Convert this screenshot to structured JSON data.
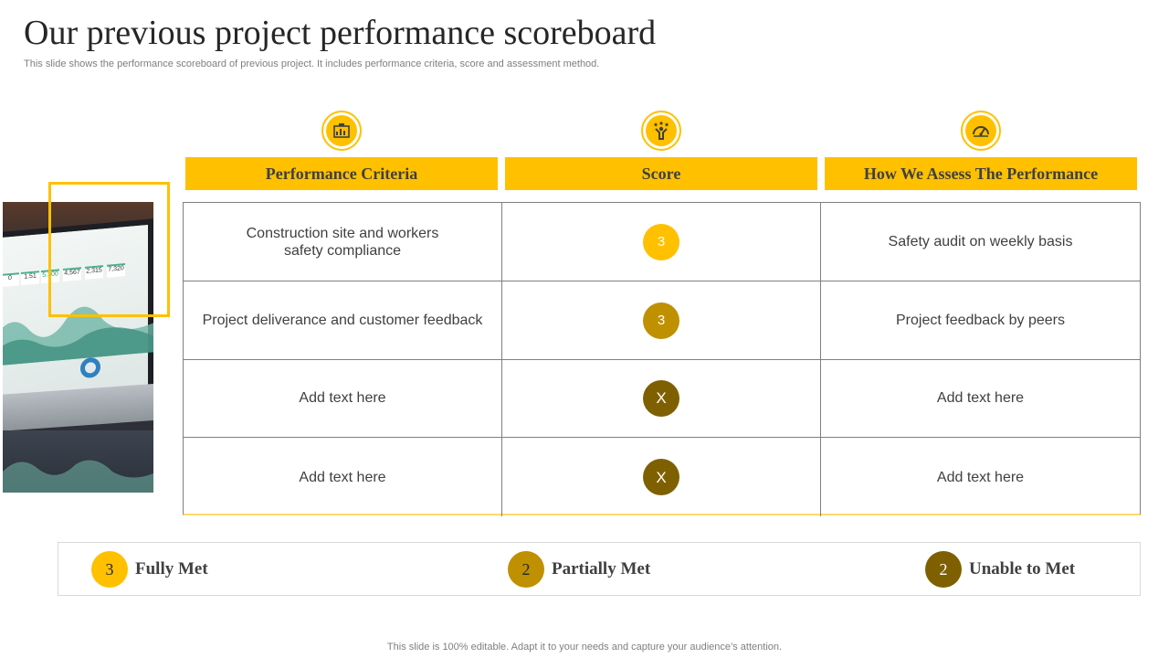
{
  "slide": {
    "title": "Our previous project performance scoreboard",
    "subtitle": "This slide shows the performance scoreboard of previous project. It includes performance criteria, score and assessment method.",
    "footer": "This slide is 100% editable. Adapt it to your needs and capture your audience’s attention."
  },
  "image": {
    "kpi_values": [
      "0",
      "1.51",
      "5.300",
      "4,567",
      "2,315",
      "7,320"
    ]
  },
  "icons": [
    "dashboard-icon",
    "star-person-icon",
    "speedometer-icon"
  ],
  "table": {
    "headers": [
      "Performance Criteria",
      "Score",
      "How We Assess The Performance"
    ],
    "rows": [
      {
        "criteria_line1": "Construction site and workers",
        "criteria_line2": "safety compliance",
        "score": "3",
        "assessment": "Safety audit on weekly basis"
      },
      {
        "criteria_line1": "Project deliverance and customer feedback",
        "criteria_line2": "",
        "score": "3",
        "assessment": "Project feedback by peers"
      },
      {
        "criteria_line1": "Add text here",
        "criteria_line2": "",
        "score": "X",
        "assessment": "Add text here"
      },
      {
        "criteria_line1": "Add text here",
        "criteria_line2": "",
        "score": "X",
        "assessment": "Add text here"
      }
    ]
  },
  "legend": [
    {
      "value": "3",
      "label": "Fully Met",
      "color": "#ffc000"
    },
    {
      "value": "2",
      "label": "Partially Met",
      "color": "#bf9000"
    },
    {
      "value": "2",
      "label": "Unable to Met",
      "color": "#7f6000"
    }
  ],
  "colors": {
    "accent": "#ffc000",
    "score_full": "#ffc000",
    "score_partial": "#bf9000",
    "score_unmet": "#7f6000"
  }
}
